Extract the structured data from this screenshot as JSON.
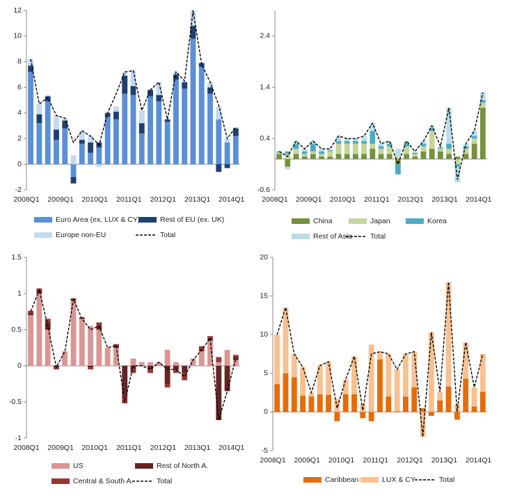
{
  "chart_data": [
    {
      "type": "bar",
      "stacked": true,
      "categories": [
        "2008Q1",
        null,
        null,
        null,
        "2009Q1",
        null,
        null,
        null,
        "2010Q1",
        null,
        null,
        null,
        "2011Q1",
        null,
        null,
        null,
        "2012Q1",
        null,
        null,
        null,
        "2013Q1",
        null,
        null,
        null,
        "2014Q1"
      ],
      "ylim": [
        -2,
        12
      ],
      "yticks": [
        -2,
        0,
        2,
        4,
        6,
        8,
        10,
        12
      ],
      "series": [
        {
          "name": "Euro Area (ex. LUX & CY)",
          "color": "#5b8fd6",
          "values": [
            7.2,
            3.2,
            4.9,
            1.9,
            2.8,
            -1.0,
            1.6,
            0.9,
            1.3,
            3.7,
            3.5,
            5.5,
            5.4,
            2.4,
            5.3,
            4.9,
            3.3,
            6.6,
            5.9,
            9.8,
            7.6,
            5.5,
            3.5,
            1.7,
            2.2
          ]
        },
        {
          "name": "Rest of EU (ex. UK)",
          "color": "#1f3f6e",
          "values": [
            0.5,
            0.7,
            0.4,
            0.8,
            0.6,
            -0.5,
            0.3,
            0.8,
            0.4,
            0.3,
            0.6,
            1.4,
            0.7,
            0.8,
            0.5,
            0.5,
            0.2,
            0.4,
            0.5,
            1.0,
            0.3,
            0.5,
            -0.6,
            -0.3,
            0.6
          ]
        },
        {
          "name": "Europe non-EU",
          "color": "#c5d9f0",
          "values": [
            0.5,
            0.8,
            0.1,
            1.1,
            0.2,
            0.7,
            0.7,
            0.5,
            -0.2,
            0.0,
            0.4,
            0.3,
            1.2,
            1.0,
            0.0,
            1.0,
            0.0,
            0.2,
            0.1,
            1.2,
            0.0,
            0.4,
            1.0,
            0.3,
            0.1
          ]
        },
        {
          "name": "Total",
          "type": "line",
          "color": "#000000",
          "values": [
            8.2,
            4.7,
            5.2,
            3.8,
            3.6,
            1.7,
            2.6,
            2.2,
            1.5,
            4.0,
            5.5,
            7.2,
            7.3,
            4.2,
            5.8,
            6.4,
            3.5,
            7.2,
            6.5,
            12.0,
            7.8,
            6.4,
            4.6,
            2.0,
            2.9
          ]
        }
      ]
    },
    {
      "type": "bar",
      "stacked": true,
      "categories": [
        "2008Q1",
        null,
        null,
        null,
        "2009Q1",
        null,
        null,
        null,
        "2010Q1",
        null,
        null,
        null,
        "2011Q1",
        null,
        null,
        null,
        "2012Q1",
        null,
        null,
        null,
        "2013Q1",
        null,
        null,
        null,
        "2014Q1"
      ],
      "ylim": [
        -0.6,
        2.9
      ],
      "yticks": [
        -0.6,
        0.4,
        1.4,
        2.4
      ],
      "series": [
        {
          "name": "China",
          "color": "#76923c",
          "values": [
            0.1,
            -0.15,
            0.1,
            0.05,
            0.1,
            0.05,
            0.05,
            0.1,
            0.1,
            0.1,
            0.1,
            0.2,
            0.1,
            0.1,
            -0.1,
            0.1,
            0.05,
            0.15,
            0.2,
            0.15,
            0.1,
            0.05,
            0.1,
            0.3,
            1.0
          ]
        },
        {
          "name": "Japan",
          "color": "#c3d69b",
          "values": [
            0.03,
            0.1,
            0.1,
            0.05,
            0.05,
            0.05,
            0.1,
            0.2,
            0.2,
            0.2,
            0.2,
            0.1,
            0.1,
            0.15,
            0.05,
            0.15,
            0.05,
            0.1,
            0.35,
            0.05,
            0.1,
            -0.1,
            0.1,
            0.1,
            0.1
          ]
        },
        {
          "name": "Korea",
          "color": "#4bacc6",
          "values": [
            0.02,
            0.05,
            0.1,
            0.05,
            0.15,
            0.05,
            0.02,
            0.05,
            0.05,
            0.05,
            0.05,
            0.25,
            0.05,
            0.05,
            -0.2,
            0.05,
            0.02,
            0.05,
            0.05,
            0.02,
            0.1,
            -0.05,
            0.05,
            0.05,
            0.05
          ]
        },
        {
          "name": "Rest of Asia",
          "color": "#b7dde8",
          "values": [
            0.0,
            -0.05,
            0.05,
            0.05,
            0.05,
            0.05,
            0.03,
            0.1,
            0.05,
            0.05,
            0.1,
            0.15,
            0.05,
            0.05,
            0.15,
            0.05,
            0.03,
            0.05,
            0.05,
            0.03,
            0.7,
            -0.3,
            0.05,
            0.1,
            0.15
          ]
        },
        {
          "name": "Total",
          "type": "line",
          "color": "#000000",
          "values": [
            0.15,
            0.05,
            0.35,
            0.2,
            0.35,
            0.2,
            0.2,
            0.45,
            0.4,
            0.4,
            0.45,
            0.7,
            0.3,
            0.35,
            -0.1,
            0.35,
            0.15,
            0.35,
            0.65,
            0.25,
            1.0,
            -0.4,
            0.3,
            0.55,
            1.3
          ]
        }
      ]
    },
    {
      "type": "bar",
      "stacked": true,
      "categories": [
        "2008Q1",
        null,
        null,
        null,
        "2009Q1",
        null,
        null,
        null,
        "2010Q1",
        null,
        null,
        null,
        "2011Q1",
        null,
        null,
        null,
        "2012Q1",
        null,
        null,
        null,
        "2013Q1",
        null,
        null,
        null,
        "2014Q1"
      ],
      "ylim": [
        -1,
        1.5
      ],
      "yticks": [
        -1,
        -0.5,
        0,
        0.5,
        1,
        1.5
      ],
      "series": [
        {
          "name": "US",
          "color": "#d99694",
          "values": [
            0.7,
            1.0,
            0.5,
            0.0,
            0.2,
            0.9,
            0.65,
            0.55,
            0.5,
            0.25,
            0.25,
            0.0,
            0.1,
            0.05,
            0.05,
            0.05,
            0.22,
            0.05,
            0.0,
            0.1,
            0.2,
            0.35,
            0.05,
            0.22,
            0.08
          ]
        },
        {
          "name": "Rest of North A.",
          "color": "#632523",
          "values": [
            0.03,
            0.05,
            0.1,
            -0.02,
            0.0,
            0.03,
            0.02,
            -0.02,
            0.05,
            0.0,
            0.03,
            -0.4,
            -0.05,
            0.0,
            -0.05,
            0.0,
            -0.25,
            -0.05,
            -0.1,
            0.0,
            0.02,
            0.03,
            -0.75,
            -0.35,
            0.04
          ]
        },
        {
          "name": "Central & South A.",
          "color": "#953735",
          "values": [
            0.03,
            0.02,
            0.05,
            -0.03,
            0.0,
            0.0,
            0.0,
            -0.03,
            0.05,
            0.0,
            0.02,
            -0.12,
            -0.05,
            0.0,
            -0.05,
            0.0,
            -0.05,
            -0.05,
            -0.1,
            0.0,
            0.05,
            0.03,
            0.07,
            0.0,
            0.03
          ]
        },
        {
          "name": "Total",
          "type": "line",
          "color": "#000000",
          "values": [
            0.75,
            1.05,
            0.55,
            -0.02,
            0.2,
            0.92,
            0.65,
            0.5,
            0.55,
            0.25,
            0.28,
            -0.5,
            0.0,
            0.0,
            -0.05,
            0.05,
            -0.05,
            -0.05,
            -0.15,
            0.08,
            0.22,
            0.38,
            -0.75,
            -0.35,
            0.1
          ]
        }
      ]
    },
    {
      "type": "bar",
      "stacked": true,
      "categories": [
        "2008Q1",
        null,
        null,
        null,
        "2009Q1",
        null,
        null,
        null,
        "2010Q1",
        null,
        null,
        null,
        "2011Q1",
        null,
        null,
        null,
        "2012Q1",
        null,
        null,
        null,
        "2013Q1",
        null,
        null,
        null,
        "2014Q1"
      ],
      "ylim": [
        -5,
        20
      ],
      "yticks": [
        -5,
        0,
        5,
        10,
        15,
        20
      ],
      "series": [
        {
          "name": "Caribbean",
          "color": "#e46c0a",
          "values": [
            3.6,
            5,
            4.5,
            2.1,
            2,
            2.3,
            2.2,
            -1.2,
            2.3,
            2.3,
            -0.8,
            -1.2,
            6.8,
            2.0,
            0.1,
            2.0,
            3.2,
            0.5,
            -0.5,
            1.5,
            3.3,
            -1.0,
            4.3,
            0.7,
            2.6
          ]
        },
        {
          "name": "LUX & CY",
          "color": "#fac090",
          "values": [
            6.4,
            8.5,
            3,
            3.7,
            0.5,
            3.7,
            4.3,
            1.7,
            1.9,
            4.9,
            1.0,
            8.7,
            1.0,
            5.5,
            5.4,
            5.5,
            4.6,
            -3.2,
            10.3,
            1.1,
            13.5,
            1.0,
            4.7,
            2.5,
            4.9
          ]
        },
        {
          "name": "Total",
          "type": "line",
          "color": "#000000",
          "values": [
            10,
            13.5,
            7.5,
            5.8,
            2.5,
            6,
            6.5,
            0.5,
            4.2,
            7.2,
            0.2,
            7.5,
            7.8,
            7.5,
            5.5,
            7.5,
            7.8,
            -3.2,
            10.3,
            2.6,
            16.8,
            0,
            9,
            3.2,
            7.5
          ]
        }
      ]
    }
  ]
}
